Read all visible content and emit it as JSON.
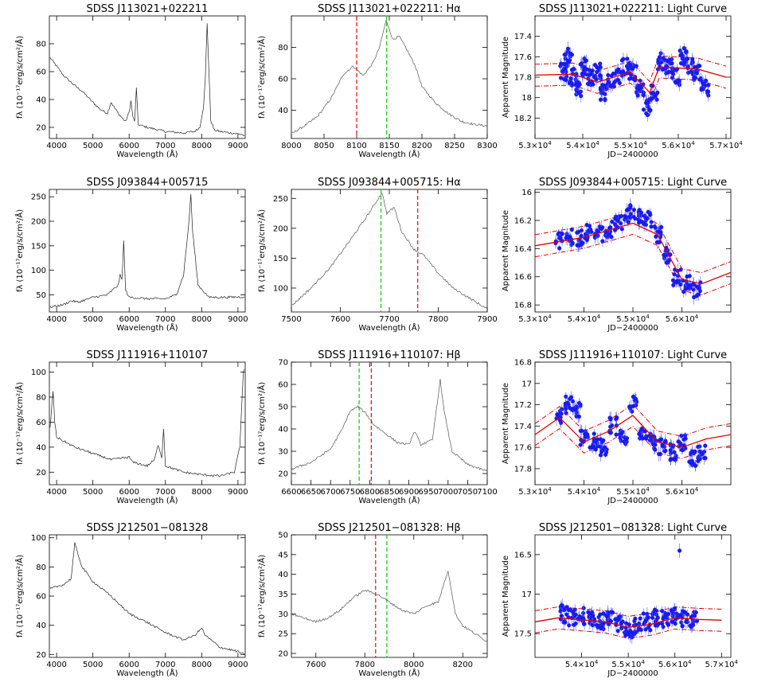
{
  "chart_data": [
    {
      "type": "line",
      "title": "SDSS J113021+022211",
      "xlabel": "Wavelength (Å)",
      "ylabel": "fλ (10⁻¹⁷erg/s/cm²/Å)",
      "xlim": [
        3800,
        9200
      ],
      "ylim": [
        12,
        100
      ],
      "xticks": [
        4000,
        5000,
        6000,
        7000,
        8000,
        9000
      ],
      "yticks": [
        20,
        40,
        60,
        80
      ],
      "x": [
        3820,
        4000,
        4200,
        4500,
        4700,
        5000,
        5200,
        5400,
        5500,
        5700,
        5900,
        6000,
        6050,
        6100,
        6150,
        6200,
        6250,
        6500,
        7000,
        7500,
        7800,
        7950,
        8050,
        8100,
        8150,
        8200,
        8250,
        8350,
        8500,
        8800,
        9100,
        9180
      ],
      "y": [
        70,
        64,
        57,
        50,
        46,
        38,
        33,
        30,
        38,
        30,
        24,
        31,
        39,
        28,
        24,
        48,
        22,
        20,
        17,
        16,
        17,
        20,
        35,
        55,
        95,
        60,
        25,
        18,
        17,
        16,
        15,
        14
      ],
      "vlines": []
    },
    {
      "type": "line",
      "title": "SDSS J113021+022211: Hα",
      "xlabel": "Wavelength (Å)",
      "ylabel": "fλ (10⁻¹⁷erg/s/cm²/Å)",
      "xlim": [
        8000,
        8300
      ],
      "ylim": [
        22,
        100
      ],
      "xticks": [
        8000,
        8050,
        8100,
        8150,
        8200,
        8250,
        8300
      ],
      "yticks": [
        40,
        60,
        80
      ],
      "x": [
        8000,
        8020,
        8040,
        8060,
        8080,
        8095,
        8110,
        8125,
        8135,
        8145,
        8150,
        8155,
        8165,
        8175,
        8190,
        8200,
        8220,
        8240,
        8260,
        8280,
        8300
      ],
      "y": [
        25,
        30,
        36,
        47,
        63,
        68,
        62,
        70,
        80,
        97,
        92,
        85,
        87,
        80,
        68,
        55,
        45,
        38,
        33,
        31,
        30
      ],
      "vlines": [
        {
          "x": 8100,
          "color": "#ff0000"
        },
        {
          "x": 8146,
          "color": "#00cc00"
        }
      ]
    },
    {
      "type": "scatter",
      "title": "SDSS J113021+022211: Light Curve",
      "xlabel": "JD−2400000",
      "ylabel": "Apparent Magnitude",
      "xlim": [
        53000,
        57100
      ],
      "ylim": [
        18.4,
        17.2
      ],
      "reversed_y": true,
      "xticks": [
        53000,
        54000,
        55000,
        56000,
        57000
      ],
      "yticks": [
        17.4,
        17.6,
        17.8,
        18.0,
        18.2
      ],
      "x": [
        53600,
        53700,
        53800,
        53900,
        54000,
        54150,
        54300,
        54450,
        54600,
        54750,
        54900,
        55050,
        55200,
        55350,
        55500,
        55650,
        55800,
        55950,
        56100,
        56250,
        56400,
        56550
      ],
      "y": [
        17.75,
        17.6,
        17.8,
        17.9,
        17.7,
        17.8,
        17.75,
        17.95,
        17.85,
        17.8,
        17.7,
        17.75,
        17.9,
        18.1,
        17.95,
        17.65,
        17.7,
        17.8,
        17.6,
        17.7,
        17.75,
        17.9
      ],
      "fit": [
        [
          53000,
          17.78
        ],
        [
          53800,
          17.77
        ],
        [
          54300,
          17.85
        ],
        [
          55000,
          17.75
        ],
        [
          55400,
          17.95
        ],
        [
          55600,
          17.7
        ],
        [
          56400,
          17.72
        ],
        [
          57000,
          17.8
        ]
      ]
    },
    {
      "type": "line",
      "title": "SDSS J093844+005715",
      "xlabel": "Wavelength (Å)",
      "ylabel": "fλ (10⁻¹⁷erg/s/cm²/Å)",
      "xlim": [
        3800,
        9200
      ],
      "ylim": [
        15,
        265
      ],
      "xticks": [
        4000,
        5000,
        6000,
        7000,
        8000,
        9000
      ],
      "yticks": [
        50,
        100,
        150,
        200,
        250
      ],
      "x": [
        3820,
        4200,
        4400,
        4600,
        5000,
        5400,
        5700,
        5750,
        5800,
        5850,
        5900,
        6000,
        6500,
        7000,
        7300,
        7500,
        7650,
        7700,
        7750,
        7900,
        8200,
        8600,
        9180
      ],
      "y": [
        25,
        30,
        38,
        35,
        45,
        50,
        70,
        90,
        80,
        160,
        60,
        45,
        42,
        42,
        50,
        90,
        200,
        255,
        180,
        70,
        45,
        45,
        46
      ],
      "vlines": []
    },
    {
      "type": "line",
      "title": "SDSS J093844+005715: Hα",
      "xlabel": "Wavelength (Å)",
      "ylabel": "fλ (10⁻¹⁷erg/s/cm²/Å)",
      "xlim": [
        7500,
        7900
      ],
      "ylim": [
        60,
        265
      ],
      "xticks": [
        7500,
        7600,
        7700,
        7800,
        7900
      ],
      "yticks": [
        100,
        150,
        200,
        250
      ],
      "x": [
        7500,
        7540,
        7580,
        7620,
        7650,
        7670,
        7685,
        7695,
        7710,
        7725,
        7750,
        7770,
        7800,
        7830,
        7860,
        7890,
        7900
      ],
      "y": [
        70,
        100,
        135,
        180,
        215,
        240,
        260,
        225,
        235,
        195,
        165,
        155,
        125,
        100,
        85,
        70,
        65
      ],
      "vlines": [
        {
          "x": 7683,
          "color": "#00cc00"
        },
        {
          "x": 7758,
          "color": "#ff0000"
        }
      ]
    },
    {
      "type": "scatter",
      "title": "SDSS J093844+005715: Light Curve",
      "xlabel": "JD−2400000",
      "ylabel": "Apparent Magnitude",
      "xlim": [
        53000,
        57000
      ],
      "ylim": [
        16.85,
        15.98
      ],
      "reversed_y": true,
      "xticks": [
        53000,
        54000,
        55000,
        56000
      ],
      "yticks": [
        16.0,
        16.2,
        16.4,
        16.6,
        16.8
      ],
      "x": [
        53500,
        53700,
        53900,
        54100,
        54300,
        54500,
        54700,
        54900,
        55100,
        55300,
        55500,
        55700,
        55900,
        56100,
        56300
      ],
      "y": [
        16.35,
        16.32,
        16.33,
        16.28,
        16.3,
        16.27,
        16.22,
        16.15,
        16.18,
        16.2,
        16.3,
        16.45,
        16.6,
        16.65,
        16.7
      ],
      "fit": [
        [
          53000,
          16.38
        ],
        [
          54000,
          16.32
        ],
        [
          55000,
          16.22
        ],
        [
          55500,
          16.3
        ],
        [
          56000,
          16.62
        ],
        [
          56400,
          16.65
        ],
        [
          57000,
          16.57
        ]
      ]
    },
    {
      "type": "line",
      "title": "SDSS J111916+110107",
      "xlabel": "Wavelength (Å)",
      "ylabel": "fλ (10⁻¹⁷erg/s/cm²/Å)",
      "xlim": [
        3800,
        9200
      ],
      "ylim": [
        10,
        108
      ],
      "xticks": [
        4000,
        5000,
        6000,
        7000,
        8000,
        9000
      ],
      "yticks": [
        20,
        40,
        60,
        80,
        100
      ],
      "x": [
        3820,
        3900,
        3950,
        4000,
        4500,
        5000,
        5500,
        6000,
        6100,
        6500,
        6700,
        6800,
        6900,
        6950,
        7000,
        7500,
        8000,
        8500,
        8900,
        9050,
        9150,
        9180
      ],
      "y": [
        55,
        85,
        60,
        48,
        40,
        35,
        30,
        32,
        28,
        25,
        30,
        42,
        32,
        55,
        25,
        20,
        18,
        17,
        20,
        40,
        100,
        102
      ],
      "vlines": []
    },
    {
      "type": "line",
      "title": "SDSS J111916+110107: Hβ",
      "xlabel": "Wavelength (Å)",
      "ylabel": "fλ (10⁻¹⁷erg/s/cm²/Å)",
      "xlim": [
        6600,
        7100
      ],
      "ylim": [
        15,
        70
      ],
      "xticks": [
        6600,
        6650,
        6700,
        6750,
        6800,
        6850,
        6900,
        6950,
        7000,
        7050,
        7100
      ],
      "yticks": [
        20,
        30,
        40,
        50,
        60,
        70
      ],
      "x": [
        6600,
        6650,
        6700,
        6730,
        6750,
        6770,
        6790,
        6810,
        6840,
        6870,
        6900,
        6915,
        6930,
        6960,
        6980,
        6990,
        7010,
        7050,
        7100
      ],
      "y": [
        22,
        25,
        31,
        40,
        48,
        50,
        47,
        42,
        38,
        34,
        33,
        39,
        33,
        35,
        62,
        48,
        30,
        24,
        21
      ],
      "vlines": [
        {
          "x": 6773,
          "color": "#00cc00"
        },
        {
          "x": 6804,
          "color": "#ff0000"
        }
      ]
    },
    {
      "type": "scatter",
      "title": "SDSS J111916+110107: Light Curve",
      "xlabel": "JD−2400000",
      "ylabel": "Apparent Magnitude",
      "xlim": [
        53000,
        57000
      ],
      "ylim": [
        17.95,
        16.8
      ],
      "reversed_y": true,
      "xticks": [
        53000,
        54000,
        55000,
        56000
      ],
      "yticks": [
        16.8,
        17.0,
        17.2,
        17.4,
        17.6,
        17.8
      ],
      "x": [
        53500,
        53700,
        53850,
        54000,
        54200,
        54400,
        54600,
        54800,
        55000,
        55200,
        55400,
        55600,
        55800,
        56000,
        56200,
        56400
      ],
      "y": [
        17.3,
        17.2,
        17.25,
        17.5,
        17.55,
        17.6,
        17.4,
        17.5,
        17.2,
        17.5,
        17.55,
        17.6,
        17.65,
        17.55,
        17.7,
        17.65
      ],
      "fit": [
        [
          53000,
          17.48
        ],
        [
          53500,
          17.32
        ],
        [
          54000,
          17.55
        ],
        [
          54500,
          17.45
        ],
        [
          55000,
          17.3
        ],
        [
          55500,
          17.55
        ],
        [
          56000,
          17.6
        ],
        [
          56500,
          17.52
        ],
        [
          57000,
          17.48
        ]
      ]
    },
    {
      "type": "line",
      "title": "SDSS J212501−081328",
      "xlabel": "Wavelength (Å)",
      "ylabel": "fλ (10⁻¹⁷erg/s/cm²/Å)",
      "xlim": [
        3800,
        9200
      ],
      "ylim": [
        18,
        102
      ],
      "xticks": [
        4000,
        5000,
        6000,
        7000,
        8000,
        9000
      ],
      "yticks": [
        20,
        40,
        60,
        80,
        100
      ],
      "x": [
        3820,
        4200,
        4400,
        4500,
        4550,
        4700,
        5000,
        5500,
        6000,
        6500,
        7000,
        7500,
        7800,
        8000,
        8100,
        8500,
        9000,
        9180
      ],
      "y": [
        65,
        68,
        72,
        96,
        92,
        80,
        70,
        60,
        48,
        42,
        35,
        30,
        33,
        38,
        33,
        25,
        22,
        20
      ],
      "vlines": []
    },
    {
      "type": "line",
      "title": "SDSS J212501−081328: Hβ",
      "xlabel": "Wavelength (Å)",
      "ylabel": "fλ (10⁻¹⁷erg/s/cm²/Å)",
      "xlim": [
        7500,
        8300
      ],
      "ylim": [
        19,
        50
      ],
      "xticks": [
        7600,
        7800,
        8000,
        8200
      ],
      "yticks": [
        20,
        25,
        30,
        35,
        40,
        45,
        50
      ],
      "x": [
        7500,
        7550,
        7600,
        7650,
        7700,
        7750,
        7800,
        7850,
        7900,
        7950,
        8000,
        8050,
        8100,
        8140,
        8170,
        8200,
        8250,
        8300
      ],
      "y": [
        30,
        29,
        28,
        29,
        31,
        34,
        36,
        35,
        33,
        31,
        30,
        32,
        33,
        41,
        30,
        27,
        25,
        23
      ],
      "vlines": [
        {
          "x": 7844,
          "color": "#ff0000"
        },
        {
          "x": 7890,
          "color": "#00cc00"
        }
      ]
    },
    {
      "type": "scatter",
      "title": "SDSS J212501−081328: Light Curve",
      "xlabel": "JD−2400000",
      "ylabel": "Apparent Magnitude",
      "xlim": [
        53000,
        57200
      ],
      "ylim": [
        17.8,
        16.25
      ],
      "reversed_y": true,
      "xticks": [
        54000,
        55000,
        56000,
        57000
      ],
      "yticks": [
        16.5,
        17.0,
        17.5
      ],
      "x": [
        53600,
        53800,
        54000,
        54200,
        54400,
        54600,
        54800,
        55000,
        55200,
        55400,
        55600,
        55800,
        56000,
        56200,
        56400,
        56100
      ],
      "y": [
        17.25,
        17.3,
        17.28,
        17.32,
        17.35,
        17.33,
        17.38,
        17.45,
        17.4,
        17.35,
        17.3,
        17.32,
        17.28,
        17.3,
        17.32,
        16.45
      ],
      "fit": [
        [
          53000,
          17.35
        ],
        [
          53500,
          17.3
        ],
        [
          54500,
          17.35
        ],
        [
          55000,
          17.42
        ],
        [
          55500,
          17.38
        ],
        [
          56000,
          17.3
        ],
        [
          56500,
          17.32
        ],
        [
          57000,
          17.33
        ]
      ]
    }
  ]
}
